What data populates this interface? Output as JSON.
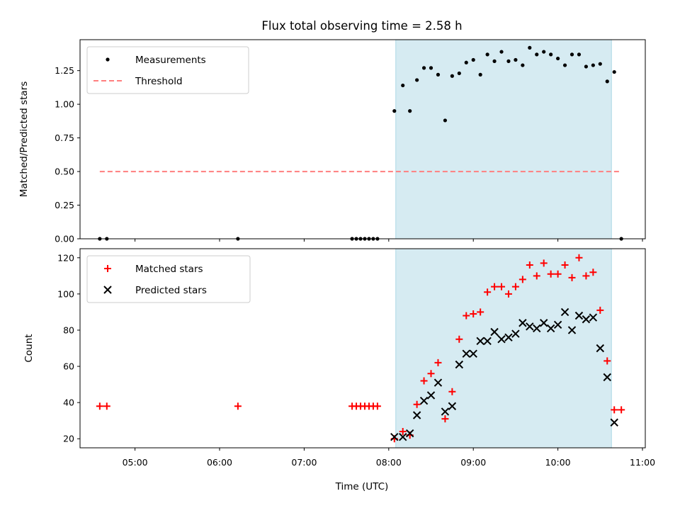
{
  "title": "Flux total observing time = 2.58 h",
  "chart_data": [
    {
      "type": "scatter",
      "ylabel": "Matched/Predicted stars",
      "ylim": [
        0,
        1.48
      ],
      "yticks": [
        0.0,
        0.25,
        0.5,
        0.75,
        1.0,
        1.25
      ],
      "ytick_labels": [
        "0.00",
        "0.25",
        "0.50",
        "0.75",
        "1.00",
        "1.25"
      ],
      "xlim": [
        "04:21",
        "11:02"
      ],
      "shaded_span": [
        "08:05",
        "10:38"
      ],
      "shade_color": "#add8e6",
      "legend_position": "upper-left",
      "series": [
        {
          "name": "Measurements",
          "marker": "dot",
          "color": "#000000",
          "x": [
            "04:35",
            "04:40",
            "06:13",
            "07:34",
            "07:37",
            "07:40",
            "07:43",
            "07:46",
            "07:49",
            "07:52",
            "08:04",
            "08:10",
            "08:15",
            "08:20",
            "08:25",
            "08:30",
            "08:35",
            "08:40",
            "08:45",
            "08:50",
            "08:55",
            "09:00",
            "09:05",
            "09:10",
            "09:15",
            "09:20",
            "09:25",
            "09:30",
            "09:35",
            "09:40",
            "09:45",
            "09:50",
            "09:55",
            "10:00",
            "10:05",
            "10:10",
            "10:15",
            "10:20",
            "10:25",
            "10:30",
            "10:35",
            "10:40",
            "10:45"
          ],
          "y": [
            0,
            0,
            0,
            0,
            0,
            0,
            0,
            0,
            0,
            0,
            0.95,
            1.14,
            0.95,
            1.18,
            1.27,
            1.27,
            1.22,
            0.88,
            1.21,
            1.23,
            1.31,
            1.33,
            1.22,
            1.37,
            1.32,
            1.39,
            1.32,
            1.33,
            1.29,
            1.42,
            1.37,
            1.39,
            1.37,
            1.34,
            1.29,
            1.37,
            1.37,
            1.28,
            1.29,
            1.3,
            1.17,
            1.24,
            0
          ]
        },
        {
          "name": "Threshold",
          "style": "dashed",
          "color": "#ff7f7f",
          "x": [
            "04:35",
            "10:45"
          ],
          "y": [
            0.5,
            0.5
          ]
        }
      ]
    },
    {
      "type": "scatter",
      "xlabel": "Time (UTC)",
      "ylabel": "Count",
      "ylim": [
        15,
        125
      ],
      "yticks": [
        20,
        40,
        60,
        80,
        100,
        120
      ],
      "xlim": [
        "04:21",
        "11:02"
      ],
      "xtick_labels": [
        "05:00",
        "06:00",
        "07:00",
        "08:00",
        "09:00",
        "10:00",
        "11:00"
      ],
      "shaded_span": [
        "08:05",
        "10:38"
      ],
      "shade_color": "#add8e6",
      "legend_position": "upper-left",
      "series": [
        {
          "name": "Matched stars",
          "marker": "plus",
          "color": "#ff0000",
          "x": [
            "04:35",
            "04:40",
            "06:13",
            "07:34",
            "07:37",
            "07:40",
            "07:43",
            "07:46",
            "07:49",
            "07:52",
            "08:04",
            "08:10",
            "08:15",
            "08:20",
            "08:25",
            "08:30",
            "08:35",
            "08:40",
            "08:45",
            "08:50",
            "08:55",
            "09:00",
            "09:05",
            "09:10",
            "09:15",
            "09:20",
            "09:25",
            "09:30",
            "09:35",
            "09:40",
            "09:45",
            "09:50",
            "09:55",
            "10:00",
            "10:05",
            "10:10",
            "10:15",
            "10:20",
            "10:25",
            "10:30",
            "10:35",
            "10:40",
            "10:45"
          ],
          "y": [
            38,
            38,
            38,
            38,
            38,
            38,
            38,
            38,
            38,
            38,
            20,
            24,
            22,
            39,
            52,
            56,
            62,
            31,
            46,
            75,
            88,
            89,
            90,
            101,
            104,
            104,
            100,
            104,
            108,
            116,
            110,
            117,
            111,
            111,
            116,
            109,
            120,
            110,
            112,
            91,
            63,
            36,
            36
          ]
        },
        {
          "name": "Predicted stars",
          "marker": "x",
          "color": "#000000",
          "x": [
            "08:04",
            "08:10",
            "08:15",
            "08:20",
            "08:25",
            "08:30",
            "08:35",
            "08:40",
            "08:45",
            "08:50",
            "08:55",
            "09:00",
            "09:05",
            "09:10",
            "09:15",
            "09:20",
            "09:25",
            "09:30",
            "09:35",
            "09:40",
            "09:45",
            "09:50",
            "09:55",
            "10:00",
            "10:05",
            "10:10",
            "10:15",
            "10:20",
            "10:25",
            "10:30",
            "10:35",
            "10:40"
          ],
          "y": [
            21,
            21,
            23,
            33,
            41,
            44,
            51,
            35,
            38,
            61,
            67,
            67,
            74,
            74,
            79,
            75,
            76,
            78,
            84,
            82,
            81,
            84,
            81,
            83,
            90,
            80,
            88,
            86,
            87,
            70,
            54,
            29
          ]
        }
      ]
    }
  ]
}
